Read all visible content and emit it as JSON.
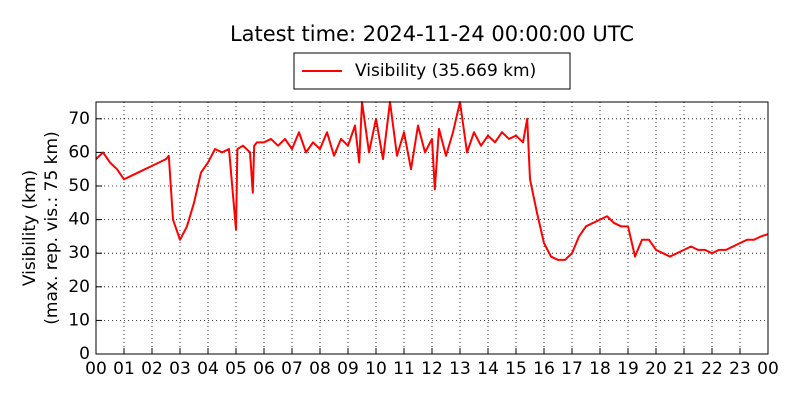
{
  "chart_data": {
    "type": "line",
    "title": "Latest time: 2024-11-24 00:00:00 UTC",
    "ylabel_lines": [
      "Visibility (km)",
      "(max. rep. vis.: 75 km)"
    ],
    "x": [
      0,
      0.25,
      0.5,
      0.75,
      1,
      1.25,
      1.5,
      1.75,
      2,
      2.25,
      2.5,
      2.6,
      2.75,
      3,
      3.25,
      3.5,
      3.75,
      4,
      4.25,
      4.5,
      4.75,
      5,
      5.05,
      5.25,
      5.5,
      5.6,
      5.65,
      5.75,
      6,
      6.25,
      6.5,
      6.75,
      7,
      7.25,
      7.5,
      7.75,
      8,
      8.25,
      8.5,
      8.75,
      9,
      9.25,
      9.4,
      9.5,
      9.75,
      10,
      10.25,
      10.5,
      10.75,
      11,
      11.25,
      11.5,
      11.75,
      12,
      12.1,
      12.25,
      12.5,
      12.75,
      13,
      13.25,
      13.5,
      13.75,
      14,
      14.25,
      14.5,
      14.75,
      15,
      15.25,
      15.4,
      15.5,
      15.75,
      16,
      16.25,
      16.5,
      16.75,
      17,
      17.25,
      17.5,
      17.75,
      18,
      18.25,
      18.5,
      18.75,
      19,
      19.25,
      19.5,
      19.75,
      20,
      20.25,
      20.5,
      20.75,
      21,
      21.25,
      21.5,
      21.75,
      22,
      22.25,
      22.5,
      22.75,
      23,
      23.25,
      23.5,
      23.75,
      24
    ],
    "series": [
      {
        "name": "Visibility (35.669 km)",
        "color": "#ff0000",
        "values": [
          58,
          60,
          57,
          55,
          52,
          53,
          54,
          55,
          56,
          57,
          58,
          59,
          40,
          34,
          38,
          45,
          54,
          57,
          61,
          60,
          61,
          37,
          61,
          62,
          60,
          48,
          62,
          63,
          63,
          64,
          62,
          64,
          61,
          66,
          60,
          63,
          61,
          66,
          59,
          64,
          62,
          68,
          57,
          75,
          60,
          70,
          58,
          75,
          59,
          66,
          55,
          68,
          60,
          64,
          49,
          67,
          59,
          66,
          75,
          60,
          66,
          62,
          65,
          63,
          66,
          64,
          65,
          63,
          70,
          52,
          42,
          33,
          29,
          28,
          28,
          30,
          35,
          38,
          39,
          40,
          41,
          39,
          38,
          38,
          29,
          34,
          34,
          31,
          30,
          29,
          30,
          31,
          32,
          31,
          31,
          30,
          31,
          31,
          32,
          33,
          34,
          34,
          35,
          35.669
        ]
      }
    ],
    "xlim": [
      0,
      24
    ],
    "xticks": [
      {
        "value": 0,
        "label": "00"
      },
      {
        "value": 1,
        "label": "01"
      },
      {
        "value": 2,
        "label": "02"
      },
      {
        "value": 3,
        "label": "03"
      },
      {
        "value": 4,
        "label": "04"
      },
      {
        "value": 5,
        "label": "05"
      },
      {
        "value": 6,
        "label": "06"
      },
      {
        "value": 7,
        "label": "07"
      },
      {
        "value": 8,
        "label": "08"
      },
      {
        "value": 9,
        "label": "09"
      },
      {
        "value": 10,
        "label": "10"
      },
      {
        "value": 11,
        "label": "11"
      },
      {
        "value": 12,
        "label": "12"
      },
      {
        "value": 13,
        "label": "13"
      },
      {
        "value": 14,
        "label": "14"
      },
      {
        "value": 15,
        "label": "15"
      },
      {
        "value": 16,
        "label": "16"
      },
      {
        "value": 17,
        "label": "17"
      },
      {
        "value": 18,
        "label": "18"
      },
      {
        "value": 19,
        "label": "19"
      },
      {
        "value": 20,
        "label": "20"
      },
      {
        "value": 21,
        "label": "21"
      },
      {
        "value": 22,
        "label": "22"
      },
      {
        "value": 23,
        "label": "23"
      },
      {
        "value": 24,
        "label": "00"
      }
    ],
    "ylim": [
      0,
      75
    ],
    "yticks": [
      0,
      10,
      20,
      30,
      40,
      50,
      60,
      70
    ],
    "grid": true
  }
}
